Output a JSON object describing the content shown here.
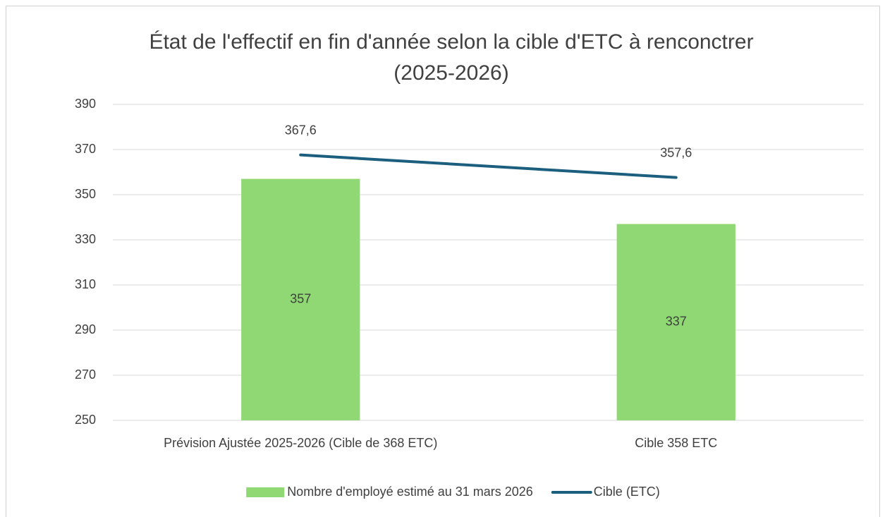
{
  "chart_data": {
    "type": "combo",
    "title": "État de l'effectif en fin d'année selon la cible d'ETC à renconctrer (2025-2026)",
    "categories": [
      "Prévision Ajustée 2025-2026 (Cible de 368 ETC)",
      "Cible 358 ETC"
    ],
    "series": [
      {
        "name": "Nombre d'employé estimé au 31 mars 2026",
        "type": "bar",
        "color": "#8fd873",
        "values": [
          357,
          337
        ]
      },
      {
        "name": "Cible (ETC)",
        "type": "line",
        "color": "#1b5e7e",
        "values": [
          367.6,
          357.6
        ],
        "value_labels": [
          "367,6",
          "357,6"
        ]
      }
    ],
    "ylim": [
      250,
      390
    ],
    "yticks": [
      250,
      270,
      290,
      310,
      330,
      350,
      370,
      390
    ],
    "grid": true,
    "legend": "bottom"
  }
}
